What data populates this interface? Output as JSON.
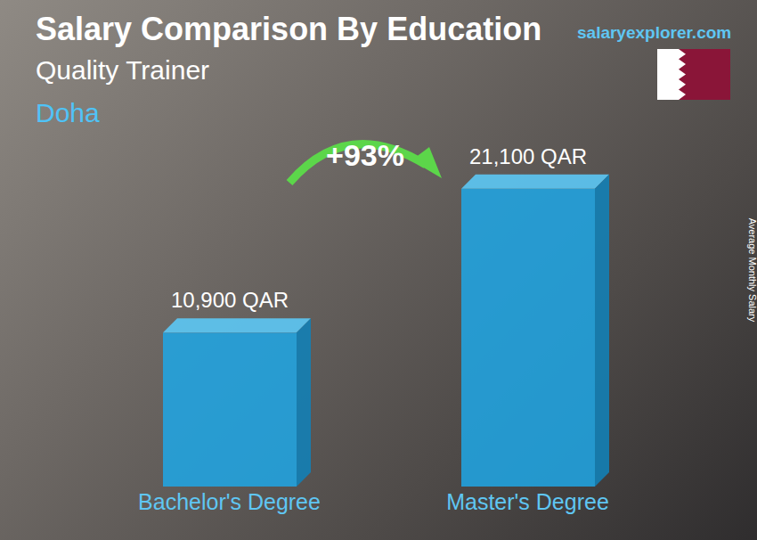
{
  "chart_data": {
    "type": "bar",
    "title": "Salary Comparison By Education",
    "subtitle": "Quality Trainer",
    "annotations": [
      "Doha",
      "+93%"
    ],
    "source": "salaryexplorer.com",
    "y_label": "Average Monthly Salary",
    "categories": [
      "Bachelor's Degree",
      "Master's Degree"
    ],
    "values": [
      10900,
      21100
    ],
    "value_labels": [
      "10,900 QAR",
      "21,100 QAR"
    ],
    "color": "#1ea7e6",
    "ylim": [
      0,
      25000
    ],
    "data_labels": true,
    "tick_labels": "x",
    "grid": false
  }
}
